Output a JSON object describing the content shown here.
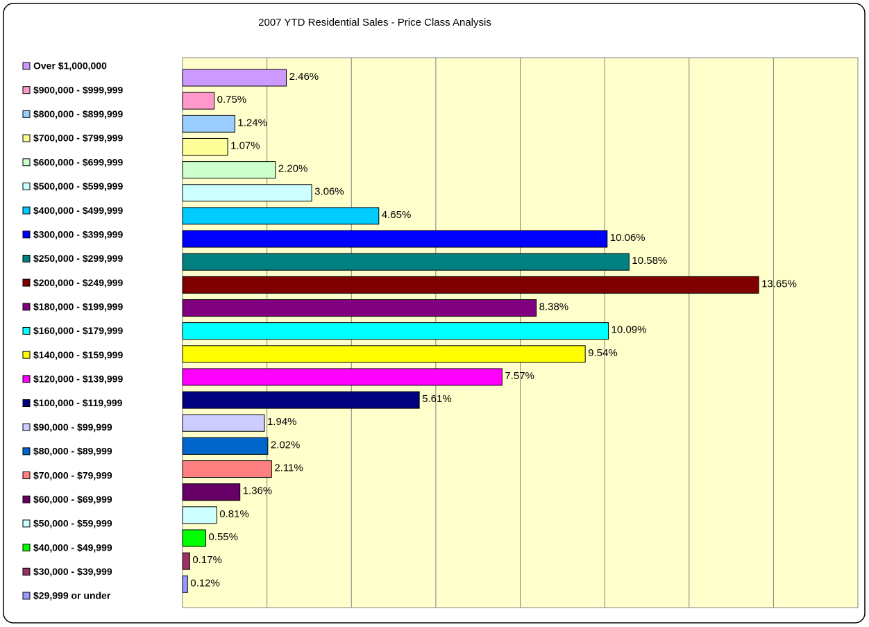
{
  "chart_data": {
    "type": "hbar",
    "title": "2007 YTD Residential Sales - Price Class Analysis",
    "categories": [
      "Over $1,000,000",
      "$900,000 - $999,999",
      "$800,000 - $899,999",
      "$700,000 - $799,999",
      "$600,000 - $699,999",
      "$500,000 - $599,999",
      "$400,000 - $499,999",
      "$300,000 - $399,999",
      "$250,000 - $299,999",
      "$200,000 - $249,999",
      "$180,000 - $199,999",
      "$160,000 - $179,999",
      "$140,000 - $159,999",
      "$120,000 - $139,999",
      "$100,000 - $119,999",
      "$90,000 - $99,999",
      "$80,000 - $89,999",
      "$70,000 - $79,999",
      "$60,000 - $69,999",
      "$50,000 - $59,999",
      "$40,000 - $49,999",
      "$30,000 - $39,999",
      "$29,999 or under"
    ],
    "values": [
      2.46,
      0.75,
      1.24,
      1.07,
      2.2,
      3.06,
      4.65,
      10.06,
      10.58,
      13.65,
      8.38,
      10.09,
      9.54,
      7.57,
      5.61,
      1.94,
      2.02,
      2.11,
      1.36,
      0.81,
      0.55,
      0.17,
      0.12
    ],
    "value_labels": [
      "2.46%",
      "0.75%",
      "1.24%",
      "1.07%",
      "2.20%",
      "3.06%",
      "4.65%",
      "10.06%",
      "10.58%",
      "13.65%",
      "8.38%",
      "10.09%",
      "9.54%",
      "7.57%",
      "5.61%",
      "1.94%",
      "2.02%",
      "2.11%",
      "1.36%",
      "0.81%",
      "0.55%",
      "0.17%",
      "0.12%"
    ],
    "colors": [
      "#cc99ff",
      "#ff99cc",
      "#99ccff",
      "#ffff99",
      "#ccffcc",
      "#ccffff",
      "#00ccff",
      "#0000ff",
      "#008080",
      "#800000",
      "#800080",
      "#00ffff",
      "#ffff00",
      "#ff00ff",
      "#000080",
      "#ccccff",
      "#0066cc",
      "#ff8080",
      "#660066",
      "#ccffff",
      "#00ff00",
      "#993366",
      "#9999ff"
    ],
    "xlim": [
      0,
      16
    ],
    "xticks": [
      0,
      2,
      4,
      6,
      8,
      10,
      12,
      14,
      16
    ],
    "grid": true,
    "legend": "left"
  }
}
